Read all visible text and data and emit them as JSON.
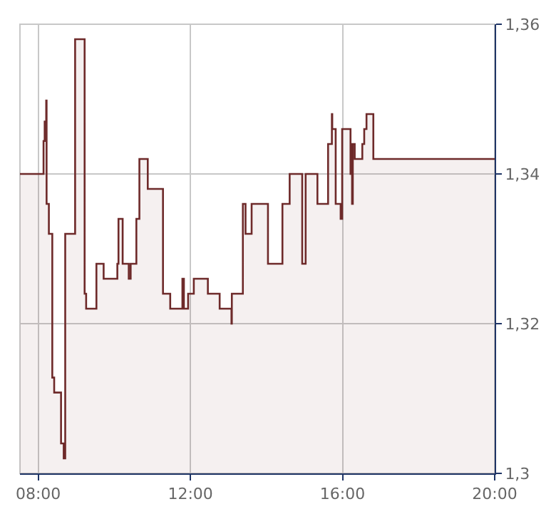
{
  "chart_data": {
    "type": "area",
    "x": [
      7.52,
      8.14,
      8.14,
      8.17,
      8.17,
      8.21,
      8.21,
      8.22,
      8.22,
      8.28,
      8.28,
      8.37,
      8.37,
      8.42,
      8.42,
      8.6,
      8.6,
      8.67,
      8.67,
      8.71,
      8.71,
      8.97,
      8.97,
      9.22,
      9.22,
      9.26,
      9.26,
      9.53,
      9.53,
      9.72,
      9.72,
      10.08,
      10.08,
      10.11,
      10.11,
      10.22,
      10.22,
      10.38,
      10.38,
      10.43,
      10.43,
      10.58,
      10.58,
      10.66,
      10.66,
      10.88,
      10.88,
      11.28,
      11.28,
      11.47,
      11.47,
      11.79,
      11.79,
      11.83,
      11.83,
      11.94,
      11.94,
      12.09,
      12.09,
      12.46,
      12.46,
      12.77,
      12.77,
      13.08,
      13.08,
      13.09,
      13.09,
      13.38,
      13.38,
      13.45,
      13.45,
      13.61,
      13.61,
      14.04,
      14.04,
      14.42,
      14.42,
      14.61,
      14.61,
      14.94,
      14.94,
      15.03,
      15.03,
      15.34,
      15.34,
      15.62,
      15.62,
      15.72,
      15.72,
      15.73,
      15.73,
      15.82,
      15.82,
      15.95,
      15.95,
      15.99,
      15.99,
      16.21,
      16.21,
      16.23,
      16.23,
      16.25,
      16.25,
      16.27,
      16.27,
      16.32,
      16.32,
      16.52,
      16.52,
      16.57,
      16.57,
      16.63,
      16.63,
      16.81,
      16.81,
      20
    ],
    "series": [
      {
        "color": "#6e2a2a",
        "values": [
          1.34,
          1.34,
          1.3444,
          1.3444,
          1.347,
          1.347,
          1.3498,
          1.3498,
          1.336,
          1.336,
          1.332,
          1.332,
          1.3128,
          1.3128,
          1.3108,
          1.3108,
          1.304,
          1.304,
          1.302,
          1.302,
          1.332,
          1.332,
          1.358,
          1.358,
          1.324,
          1.324,
          1.322,
          1.322,
          1.328,
          1.328,
          1.326,
          1.326,
          1.328,
          1.328,
          1.334,
          1.334,
          1.328,
          1.328,
          1.326,
          1.326,
          1.328,
          1.328,
          1.334,
          1.334,
          1.342,
          1.342,
          1.338,
          1.338,
          1.324,
          1.324,
          1.322,
          1.322,
          1.326,
          1.326,
          1.322,
          1.322,
          1.324,
          1.324,
          1.326,
          1.326,
          1.324,
          1.324,
          1.322,
          1.322,
          1.32,
          1.32,
          1.324,
          1.324,
          1.336,
          1.336,
          1.332,
          1.332,
          1.336,
          1.336,
          1.328,
          1.328,
          1.336,
          1.336,
          1.34,
          1.34,
          1.328,
          1.328,
          1.34,
          1.34,
          1.336,
          1.336,
          1.344,
          1.344,
          1.348,
          1.348,
          1.346,
          1.346,
          1.336,
          1.336,
          1.334,
          1.334,
          1.346,
          1.346,
          1.34,
          1.34,
          1.344,
          1.344,
          1.336,
          1.336,
          1.344,
          1.344,
          1.342,
          1.342,
          1.344,
          1.344,
          1.346,
          1.346,
          1.348,
          1.348,
          1.342,
          1.342
        ]
      }
    ],
    "xlim": [
      7.52,
      20
    ],
    "xticks": [
      {
        "value": 8,
        "label": "08:00"
      },
      {
        "value": 12,
        "label": "12:00"
      },
      {
        "value": 16,
        "label": "16:00"
      },
      {
        "value": 20,
        "label": "20:00"
      }
    ],
    "ylim": [
      1.3,
      1.36
    ],
    "yticks": [
      {
        "value": 1.3,
        "label": "1,3"
      },
      {
        "value": 1.32,
        "label": "1,32"
      },
      {
        "value": 1.34,
        "label": "1,34"
      },
      {
        "value": 1.36,
        "label": "1,36"
      }
    ],
    "grid": true,
    "legend": false,
    "marker": "none",
    "line_style": "solid"
  }
}
